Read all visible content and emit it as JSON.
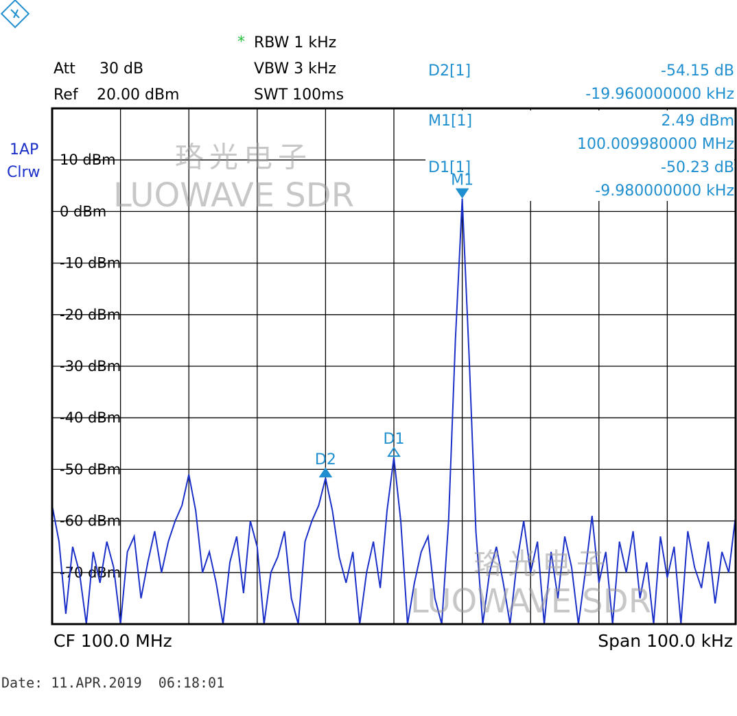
{
  "header": {
    "att_label": "Att",
    "att_value": "30 dB",
    "ref_label": "Ref",
    "ref_value": "20.00 dBm",
    "rbw_flag": "*",
    "rbw": "RBW 1 kHz",
    "vbw": "VBW 3 kHz",
    "swt": "SWT 100ms"
  },
  "readouts": [
    {
      "name": "D2[1]",
      "level": "-54.15 dB",
      "freq": "-19.960000000 kHz"
    },
    {
      "name": "M1[1]",
      "level": "2.49 dBm",
      "freq": "100.009980000 MHz"
    },
    {
      "name": "D1[1]",
      "level": "-50.23 dB",
      "freq": "-9.980000000 kHz"
    }
  ],
  "watermark": {
    "cn": "珞光电子",
    "en": "LUOWAVE SDR"
  },
  "chart_data": {
    "type": "line",
    "trace": "1AP",
    "mode": "Clrw",
    "color": "#1a2fc8",
    "ylim": [
      -80,
      20
    ],
    "yticks": [
      {
        "value": 10,
        "label": "10 dBm"
      },
      {
        "value": 0,
        "label": "0 dBm"
      },
      {
        "value": -10,
        "label": "-10 dBm"
      },
      {
        "value": -20,
        "label": "-20 dBm"
      },
      {
        "value": -30,
        "label": "-30 dBm"
      },
      {
        "value": -40,
        "label": "-40 dBm"
      },
      {
        "value": -50,
        "label": "-50 dBm"
      },
      {
        "value": -60,
        "label": "-60 dBm"
      },
      {
        "value": -70,
        "label": "-70 dBm"
      }
    ],
    "grid": true,
    "values": [
      -57,
      -64,
      -78,
      -65,
      -70,
      -80,
      -66,
      -72,
      -64,
      -69,
      -80,
      -66,
      -63,
      -75,
      -68,
      -62,
      -70,
      -64,
      -60,
      -57,
      -51,
      -58,
      -70,
      -66,
      -72,
      -80,
      -68,
      -63,
      -74,
      -60,
      -65,
      -80,
      -70,
      -67,
      -62,
      -75,
      -80,
      -64,
      -60,
      -57,
      -51.7,
      -58,
      -67,
      -72,
      -66,
      -80,
      -70,
      -64,
      -73,
      -58,
      -47.7,
      -60,
      -80,
      -72,
      -66,
      -63,
      -75,
      -80,
      -60,
      -25,
      2.49,
      -28,
      -62,
      -80,
      -70,
      -65,
      -72,
      -80,
      -68,
      -60,
      -70,
      -64,
      -80,
      -66,
      -75,
      -63,
      -69,
      -80,
      -70,
      -59,
      -72,
      -66,
      -80,
      -64,
      -70,
      -62,
      -75,
      -68,
      -80,
      -63,
      -71,
      -65,
      -80,
      -62,
      -69,
      -73,
      -64,
      -76,
      -66,
      -70,
      -59
    ],
    "markers": [
      "M1",
      "D1",
      "D2"
    ]
  },
  "footer": {
    "center": "CF 100.0 MHz",
    "span": "Span 100.0 kHz",
    "date": "Date: 11.APR.2019  06:18:01"
  }
}
